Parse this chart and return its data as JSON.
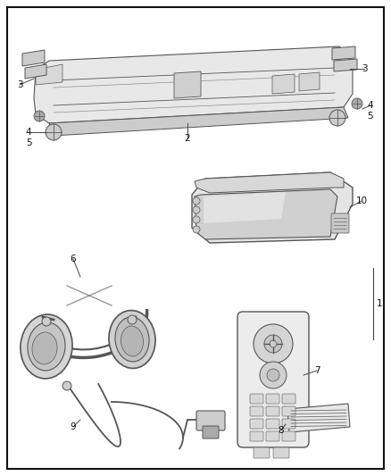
{
  "bg_color": "#ffffff",
  "border_color": "#111111",
  "line_color": "#444444",
  "part_outline": "#555555",
  "label_color": "#111111",
  "fig_width": 4.38,
  "fig_height": 5.33,
  "dpi": 100
}
